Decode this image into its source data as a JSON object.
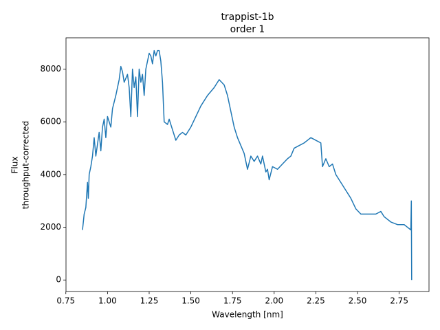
{
  "chart_data": {
    "type": "line",
    "title": "trappist-1b",
    "subtitle": "order 1",
    "xlabel": "Wavelength [nm]",
    "ylabel": [
      "Flux",
      "throughput-corrected"
    ],
    "color": "#1f77b4",
    "x": [
      0.85,
      0.86,
      0.87,
      0.88,
      0.885,
      0.89,
      0.9,
      0.91,
      0.92,
      0.93,
      0.95,
      0.96,
      0.97,
      0.98,
      0.99,
      1.0,
      1.02,
      1.03,
      1.05,
      1.07,
      1.08,
      1.09,
      1.1,
      1.12,
      1.13,
      1.14,
      1.15,
      1.16,
      1.17,
      1.18,
      1.19,
      1.2,
      1.21,
      1.22,
      1.23,
      1.24,
      1.25,
      1.26,
      1.27,
      1.28,
      1.29,
      1.3,
      1.31,
      1.32,
      1.33,
      1.34,
      1.36,
      1.37,
      1.39,
      1.41,
      1.43,
      1.45,
      1.47,
      1.5,
      1.53,
      1.56,
      1.6,
      1.64,
      1.67,
      1.7,
      1.72,
      1.74,
      1.76,
      1.78,
      1.8,
      1.82,
      1.84,
      1.86,
      1.88,
      1.9,
      1.92,
      1.93,
      1.95,
      1.96,
      1.97,
      1.99,
      2.02,
      2.05,
      2.08,
      2.1,
      2.12,
      2.15,
      2.18,
      2.2,
      2.22,
      2.25,
      2.28,
      2.29,
      2.31,
      2.33,
      2.35,
      2.37,
      2.4,
      2.43,
      2.46,
      2.49,
      2.52,
      2.55,
      2.58,
      2.61,
      2.64,
      2.66,
      2.7,
      2.74,
      2.78,
      2.8,
      2.82,
      2.823,
      2.825
    ],
    "values": [
      1900,
      2500,
      2750,
      3700,
      3100,
      4000,
      4300,
      4700,
      5400,
      4700,
      5600,
      4900,
      5800,
      6100,
      5400,
      6200,
      5800,
      6500,
      7000,
      7600,
      8100,
      7900,
      7500,
      7800,
      7300,
      6200,
      8000,
      7300,
      7700,
      6200,
      8000,
      7500,
      7800,
      7000,
      8000,
      8300,
      8600,
      8500,
      8200,
      8700,
      8500,
      8700,
      8700,
      8300,
      7500,
      6000,
      5900,
      6100,
      5700,
      5300,
      5500,
      5600,
      5500,
      5800,
      6200,
      6600,
      7000,
      7300,
      7600,
      7400,
      7000,
      6400,
      5800,
      5400,
      5100,
      4800,
      4200,
      4700,
      4500,
      4700,
      4400,
      4700,
      4100,
      4200,
      3800,
      4300,
      4200,
      4400,
      4600,
      4700,
      5000,
      5100,
      5200,
      5300,
      5400,
      5300,
      5200,
      4300,
      4600,
      4300,
      4400,
      4000,
      3700,
      3400,
      3100,
      2700,
      2500,
      2500,
      2500,
      2500,
      2600,
      2400,
      2200,
      2100,
      2100,
      2000,
      1900,
      3000,
      0
    ],
    "xlim": [
      0.751,
      2.929
    ],
    "ylim": [
      -437,
      9187
    ],
    "xticks": [
      0.75,
      {
        "value": 1.0,
        "label": "1.00"
      },
      1.25,
      {
        "value": 1.5,
        "label": "1.50"
      },
      1.75,
      {
        "value": 2.0,
        "label": "2.00"
      },
      2.25,
      {
        "value": 2.5,
        "label": "2.50"
      },
      2.75
    ],
    "yticks": [
      0,
      2000,
      4000,
      6000,
      8000
    ]
  }
}
